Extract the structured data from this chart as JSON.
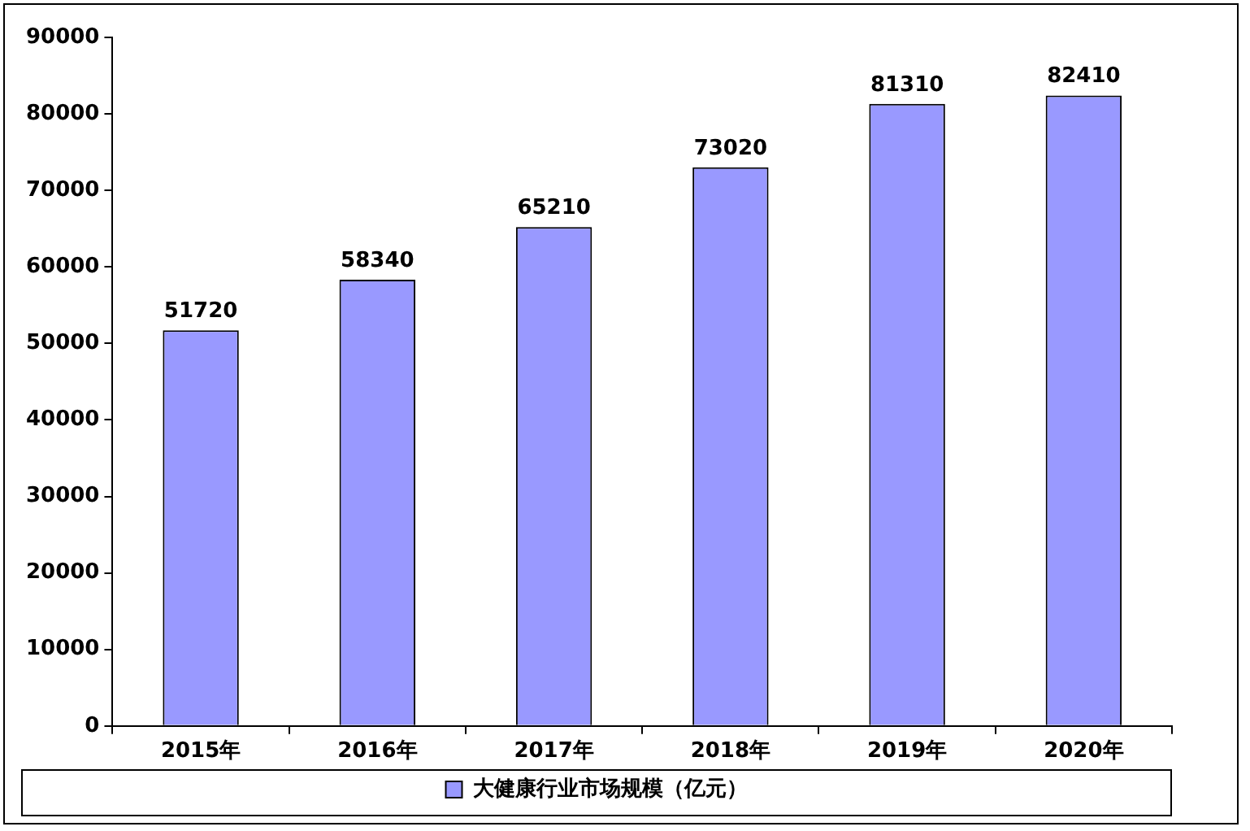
{
  "chart_data": {
    "type": "bar",
    "categories": [
      "2015年",
      "2016年",
      "2017年",
      "2018年",
      "2019年",
      "2020年"
    ],
    "series": [
      {
        "name": "大健康行业市场规模（亿元）",
        "color": "#9999ff",
        "values": [
          51720,
          58340,
          65210,
          73020,
          81310,
          82410
        ]
      }
    ],
    "ylim": [
      0,
      90000
    ],
    "yticks": [
      0,
      10000,
      20000,
      30000,
      40000,
      50000,
      60000,
      70000,
      80000,
      90000
    ],
    "grid": false,
    "legend": "bottom",
    "data_labels": true
  }
}
